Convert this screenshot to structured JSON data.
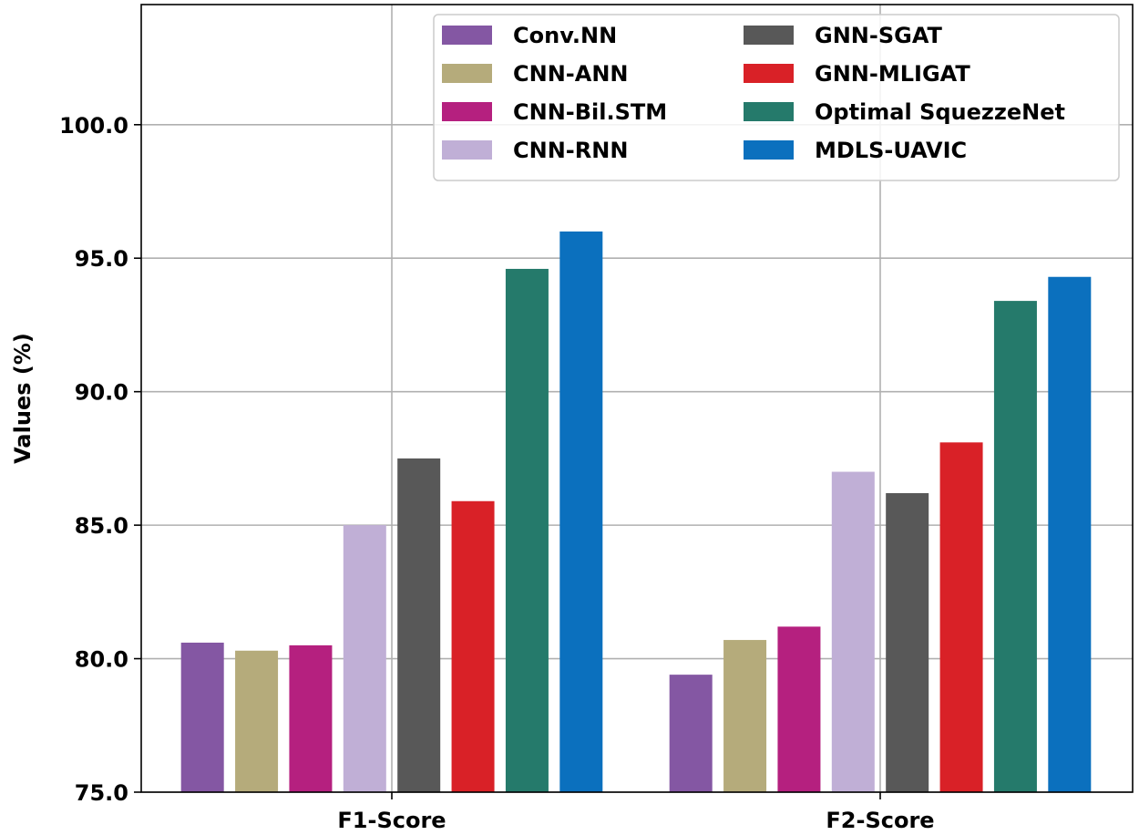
{
  "chart_data": {
    "type": "bar",
    "ylabel": "Values (%)",
    "xlabel": "",
    "ylim": [
      75.0,
      104.5
    ],
    "yticks": [
      "75.0",
      "80.0",
      "85.0",
      "90.0",
      "95.0",
      "100.0"
    ],
    "categories": [
      "F1-Score",
      "F2-Score"
    ],
    "grid": true,
    "legend_position": "top-right",
    "series": [
      {
        "name": "Conv.NN",
        "color": "#8457a3",
        "values": [
          80.6,
          79.4
        ]
      },
      {
        "name": "CNN-ANN",
        "color": "#b5ab7b",
        "values": [
          80.3,
          80.7
        ]
      },
      {
        "name": "CNN-Bil.STM",
        "color": "#b5207f",
        "values": [
          80.5,
          81.2
        ]
      },
      {
        "name": "CNN-RNN",
        "color": "#c0afd6",
        "values": [
          85.0,
          87.0
        ]
      },
      {
        "name": "GNN-SGAT",
        "color": "#585858",
        "values": [
          87.5,
          86.2
        ]
      },
      {
        "name": "GNN-MLIGAT",
        "color": "#d92127",
        "values": [
          85.9,
          88.1
        ]
      },
      {
        "name": "Optimal SquezzeNet",
        "color": "#257a6b",
        "values": [
          94.6,
          93.4
        ]
      },
      {
        "name": "MDLS-UAVIC",
        "color": "#0b70be",
        "values": [
          96.0,
          94.3
        ]
      }
    ]
  }
}
